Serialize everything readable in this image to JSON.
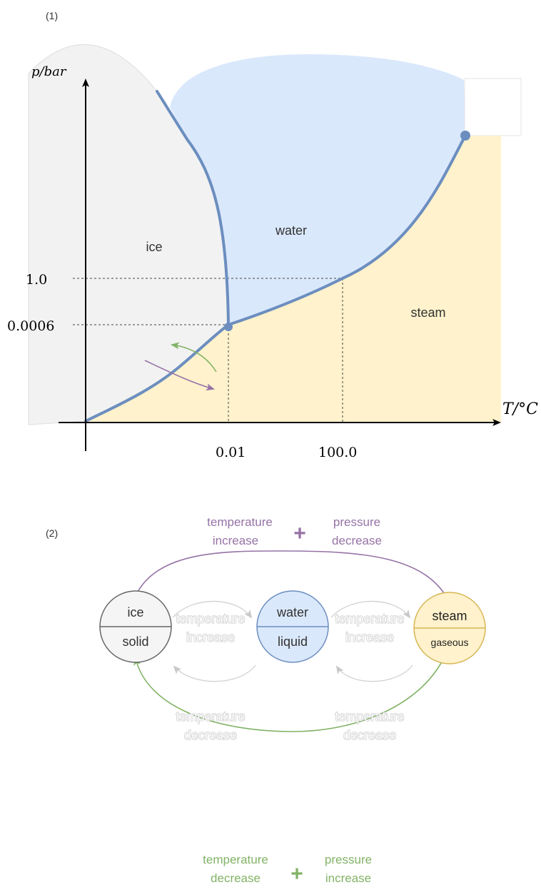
{
  "panel1": {
    "label": "(1)",
    "y_axis_label": "p/bar",
    "x_axis_label": "T/°C",
    "y_ticks": [
      "1.0",
      "0.0006"
    ],
    "x_ticks": [
      "0.01",
      "100.0"
    ],
    "regions": {
      "ice": "ice",
      "water": "water",
      "steam": "steam"
    },
    "colors": {
      "ice": "#f2f2f2",
      "water": "#dae8fc",
      "steam": "#fff2cc",
      "curve": "#6c8ebf",
      "arrow_green": "#82b366",
      "arrow_purple": "#9673a6"
    }
  },
  "panel2": {
    "label": "(2)",
    "states": [
      {
        "name": "ice",
        "phase": "solid",
        "fill": "#f5f5f5",
        "stroke": "#666666"
      },
      {
        "name": "water",
        "phase": "liquid",
        "fill": "#dae8fc",
        "stroke": "#6c8ebf"
      },
      {
        "name": "steam",
        "phase": "gaseous",
        "fill": "#fff2cc",
        "stroke": "#d6b656"
      }
    ],
    "top_arc": {
      "left_line1": "temperature",
      "left_line2": "increase",
      "right_line1": "pressure",
      "right_line2": "decrease",
      "plus": "+",
      "color": "#9673a6"
    },
    "bottom_arc": {
      "left_line1": "temperature",
      "left_line2": "decrease",
      "right_line1": "pressure",
      "right_line2": "increase",
      "plus": "+",
      "color": "#82b366"
    },
    "inner_transitions": {
      "up_left": [
        "temperature",
        "increase"
      ],
      "up_right": [
        "temperature",
        "increase"
      ],
      "down_left": [
        "temperature",
        "decrease"
      ],
      "down_right": [
        "temperature",
        "decrease"
      ]
    }
  }
}
